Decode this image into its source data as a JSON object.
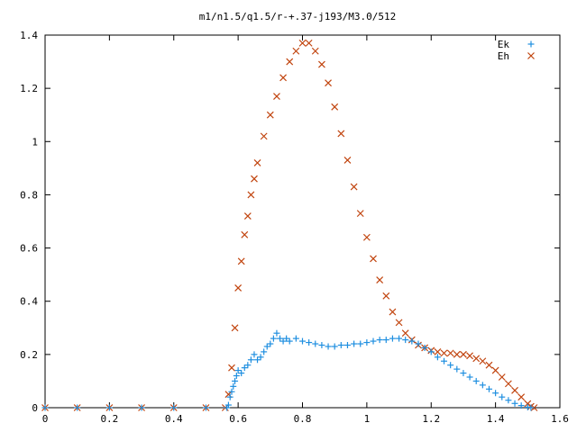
{
  "chart_data": {
    "type": "scatter",
    "title": "m1/n1.5/q1.5/r-+.37-j193/M3.0/512",
    "xlabel": "",
    "ylabel": "",
    "xlim": [
      0,
      1.6
    ],
    "ylim": [
      0,
      1.4
    ],
    "x_ticks": [
      "0",
      "0.2",
      "0.4",
      "0.6",
      "0.8",
      "1",
      "1.2",
      "1.4",
      "1.6"
    ],
    "y_ticks": [
      "0",
      "0.2",
      "0.4",
      "0.6",
      "0.8",
      "1",
      "1.2",
      "1.4"
    ],
    "grid": false,
    "legend_position": "top-right",
    "series": [
      {
        "name": "Ek",
        "marker": "plus",
        "color": "#1f8fe0",
        "points": [
          [
            0.0,
            0
          ],
          [
            0.1,
            0
          ],
          [
            0.2,
            0
          ],
          [
            0.3,
            0
          ],
          [
            0.4,
            0
          ],
          [
            0.5,
            0
          ],
          [
            0.565,
            0
          ],
          [
            0.57,
            0.01
          ],
          [
            0.575,
            0.04
          ],
          [
            0.58,
            0.06
          ],
          [
            0.585,
            0.08
          ],
          [
            0.59,
            0.1
          ],
          [
            0.595,
            0.12
          ],
          [
            0.6,
            0.14
          ],
          [
            0.61,
            0.13
          ],
          [
            0.62,
            0.15
          ],
          [
            0.63,
            0.16
          ],
          [
            0.64,
            0.18
          ],
          [
            0.65,
            0.2
          ],
          [
            0.66,
            0.18
          ],
          [
            0.67,
            0.19
          ],
          [
            0.68,
            0.21
          ],
          [
            0.69,
            0.23
          ],
          [
            0.7,
            0.24
          ],
          [
            0.71,
            0.26
          ],
          [
            0.72,
            0.28
          ],
          [
            0.73,
            0.26
          ],
          [
            0.74,
            0.25
          ],
          [
            0.75,
            0.26
          ],
          [
            0.76,
            0.25
          ],
          [
            0.78,
            0.26
          ],
          [
            0.8,
            0.25
          ],
          [
            0.82,
            0.245
          ],
          [
            0.84,
            0.24
          ],
          [
            0.86,
            0.235
          ],
          [
            0.88,
            0.23
          ],
          [
            0.9,
            0.23
          ],
          [
            0.92,
            0.235
          ],
          [
            0.94,
            0.235
          ],
          [
            0.96,
            0.24
          ],
          [
            0.98,
            0.24
          ],
          [
            1.0,
            0.245
          ],
          [
            1.02,
            0.25
          ],
          [
            1.04,
            0.255
          ],
          [
            1.06,
            0.255
          ],
          [
            1.08,
            0.26
          ],
          [
            1.1,
            0.26
          ],
          [
            1.12,
            0.255
          ],
          [
            1.14,
            0.25
          ],
          [
            1.16,
            0.24
          ],
          [
            1.18,
            0.225
          ],
          [
            1.2,
            0.21
          ],
          [
            1.22,
            0.19
          ],
          [
            1.24,
            0.175
          ],
          [
            1.26,
            0.16
          ],
          [
            1.28,
            0.145
          ],
          [
            1.3,
            0.13
          ],
          [
            1.32,
            0.115
          ],
          [
            1.34,
            0.1
          ],
          [
            1.36,
            0.085
          ],
          [
            1.38,
            0.07
          ],
          [
            1.4,
            0.055
          ],
          [
            1.42,
            0.04
          ],
          [
            1.44,
            0.028
          ],
          [
            1.46,
            0.016
          ],
          [
            1.48,
            0.008
          ],
          [
            1.5,
            0.002
          ],
          [
            1.51,
            0
          ]
        ]
      },
      {
        "name": "Eh",
        "marker": "cross",
        "color": "#c1440e",
        "points": [
          [
            0.0,
            0
          ],
          [
            0.1,
            0
          ],
          [
            0.2,
            0
          ],
          [
            0.3,
            0
          ],
          [
            0.4,
            0
          ],
          [
            0.5,
            0
          ],
          [
            0.56,
            0
          ],
          [
            0.57,
            0.05
          ],
          [
            0.58,
            0.15
          ],
          [
            0.59,
            0.3
          ],
          [
            0.6,
            0.45
          ],
          [
            0.61,
            0.55
          ],
          [
            0.62,
            0.65
          ],
          [
            0.63,
            0.72
          ],
          [
            0.64,
            0.8
          ],
          [
            0.65,
            0.86
          ],
          [
            0.66,
            0.92
          ],
          [
            0.68,
            1.02
          ],
          [
            0.7,
            1.1
          ],
          [
            0.72,
            1.17
          ],
          [
            0.74,
            1.24
          ],
          [
            0.76,
            1.3
          ],
          [
            0.78,
            1.34
          ],
          [
            0.8,
            1.37
          ],
          [
            0.82,
            1.37
          ],
          [
            0.84,
            1.34
          ],
          [
            0.86,
            1.29
          ],
          [
            0.88,
            1.22
          ],
          [
            0.9,
            1.13
          ],
          [
            0.92,
            1.03
          ],
          [
            0.94,
            0.93
          ],
          [
            0.96,
            0.83
          ],
          [
            0.98,
            0.73
          ],
          [
            1.0,
            0.64
          ],
          [
            1.02,
            0.56
          ],
          [
            1.04,
            0.48
          ],
          [
            1.06,
            0.42
          ],
          [
            1.08,
            0.36
          ],
          [
            1.1,
            0.32
          ],
          [
            1.12,
            0.28
          ],
          [
            1.14,
            0.255
          ],
          [
            1.16,
            0.235
          ],
          [
            1.18,
            0.225
          ],
          [
            1.2,
            0.215
          ],
          [
            1.22,
            0.21
          ],
          [
            1.24,
            0.205
          ],
          [
            1.26,
            0.205
          ],
          [
            1.28,
            0.2
          ],
          [
            1.3,
            0.2
          ],
          [
            1.32,
            0.195
          ],
          [
            1.34,
            0.185
          ],
          [
            1.36,
            0.175
          ],
          [
            1.38,
            0.16
          ],
          [
            1.4,
            0.14
          ],
          [
            1.42,
            0.115
          ],
          [
            1.44,
            0.09
          ],
          [
            1.46,
            0.065
          ],
          [
            1.48,
            0.04
          ],
          [
            1.5,
            0.015
          ],
          [
            1.51,
            0.005
          ],
          [
            1.52,
            0
          ]
        ]
      }
    ]
  }
}
